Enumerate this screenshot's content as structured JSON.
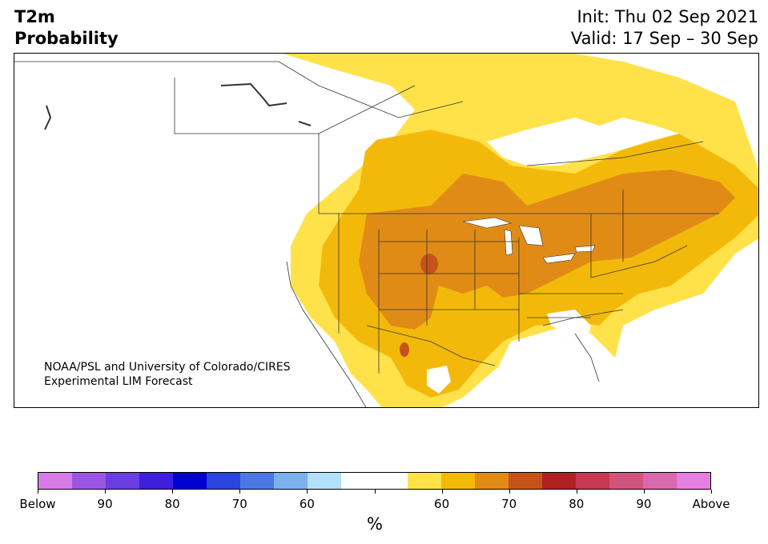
{
  "header": {
    "variable": "T2m",
    "product": "Probability",
    "init": "Init: Thu 02 Sep 2021",
    "valid": "Valid: 17 Sep – 30 Sep"
  },
  "credit": {
    "line1": "NOAA/PSL and University of Colorado/CIRES",
    "line2": "Experimental LIM Forecast"
  },
  "colorbar": {
    "unit": "%",
    "colors": [
      "#d57ae6",
      "#9b57e3",
      "#6a3ee0",
      "#3d20d8",
      "#0000d0",
      "#2a44dd",
      "#4d78e4",
      "#7cb1ee",
      "#b3e0fa",
      "#ffffff",
      "#ffffff",
      "#ffe24a",
      "#f3b90a",
      "#e08b16",
      "#c6541a",
      "#b02222",
      "#c73a52",
      "#d0557c",
      "#d869ad",
      "#e67fe0"
    ],
    "tick_labels": [
      "Below",
      "90",
      "80",
      "70",
      "60",
      "",
      "60",
      "70",
      "80",
      "90",
      "Above"
    ]
  },
  "map": {
    "color_below_normal": "#ffffff",
    "color_60": "#ffe24a",
    "color_70": "#f3b90a",
    "color_80": "#e08b16",
    "color_90": "#c6541a"
  }
}
